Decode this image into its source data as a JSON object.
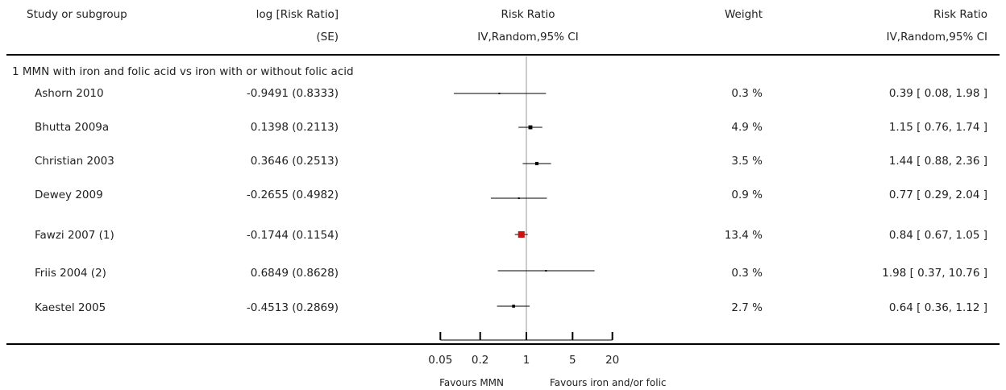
{
  "headers": {
    "study": "Study or subgroup",
    "logrr": "log [Risk Ratio]",
    "logrr_se": "(SE)",
    "rr": "Risk Ratio",
    "rr_method": "IV,Random,95% CI",
    "weight": "Weight",
    "rr2": "Risk Ratio",
    "rr2_method": "IV,Random,95% CI"
  },
  "subgroup_title": "1 MMN with iron and folic acid vs iron with or without folic acid",
  "chart_data": {
    "type": "forest",
    "x_scale": "log",
    "xlim": [
      0.05,
      20
    ],
    "null_line": 1,
    "ticks": [
      "0.05",
      "0.2",
      "1",
      "5",
      "20"
    ],
    "tick_values": [
      0.05,
      0.2,
      1,
      5,
      20
    ],
    "favours_left": "Favours MMN",
    "favours_right": "Favours iron and/or folic",
    "studies": [
      {
        "name": "Ashorn 2010",
        "logrr_se": "-0.9491 (0.8333)",
        "weight": "0.3 %",
        "ci_text": "0.39 [ 0.08, 1.98 ]",
        "rr": 0.39,
        "lo": 0.08,
        "hi": 1.98,
        "w": 0.3
      },
      {
        "name": "Bhutta 2009a",
        "logrr_se": "0.1398 (0.2113)",
        "weight": "4.9 %",
        "ci_text": "1.15 [ 0.76, 1.74 ]",
        "rr": 1.15,
        "lo": 0.76,
        "hi": 1.74,
        "w": 4.9
      },
      {
        "name": "Christian 2003",
        "logrr_se": "0.3646 (0.2513)",
        "weight": "3.5 %",
        "ci_text": "1.44 [ 0.88, 2.36 ]",
        "rr": 1.44,
        "lo": 0.88,
        "hi": 2.36,
        "w": 3.5
      },
      {
        "name": "Dewey 2009",
        "logrr_se": "-0.2655 (0.4982)",
        "weight": "0.9 %",
        "ci_text": "0.77 [ 0.29, 2.04 ]",
        "rr": 0.77,
        "lo": 0.29,
        "hi": 2.04,
        "w": 0.9
      },
      {
        "name": "Fawzi 2007 (1)",
        "logrr_se": "-0.1744 (0.1154)",
        "weight": "13.4 %",
        "ci_text": "0.84 [ 0.67, 1.05 ]",
        "rr": 0.84,
        "lo": 0.67,
        "hi": 1.05,
        "w": 13.4
      },
      {
        "name": "Friis 2004 (2)",
        "logrr_se": "0.6849 (0.8628)",
        "weight": "0.3 %",
        "ci_text": "1.98 [ 0.37, 10.76 ]",
        "rr": 1.98,
        "lo": 0.37,
        "hi": 10.76,
        "w": 0.3
      },
      {
        "name": "Kaestel 2005",
        "logrr_se": "-0.4513 (0.2869)",
        "weight": "2.7 %",
        "ci_text": "0.64 [ 0.36, 1.12 ]",
        "rr": 0.64,
        "lo": 0.36,
        "hi": 1.12,
        "w": 2.7
      }
    ],
    "colors": {
      "marker_large": "#cc1111",
      "line": "#000000",
      "null_line": "#999999"
    }
  }
}
